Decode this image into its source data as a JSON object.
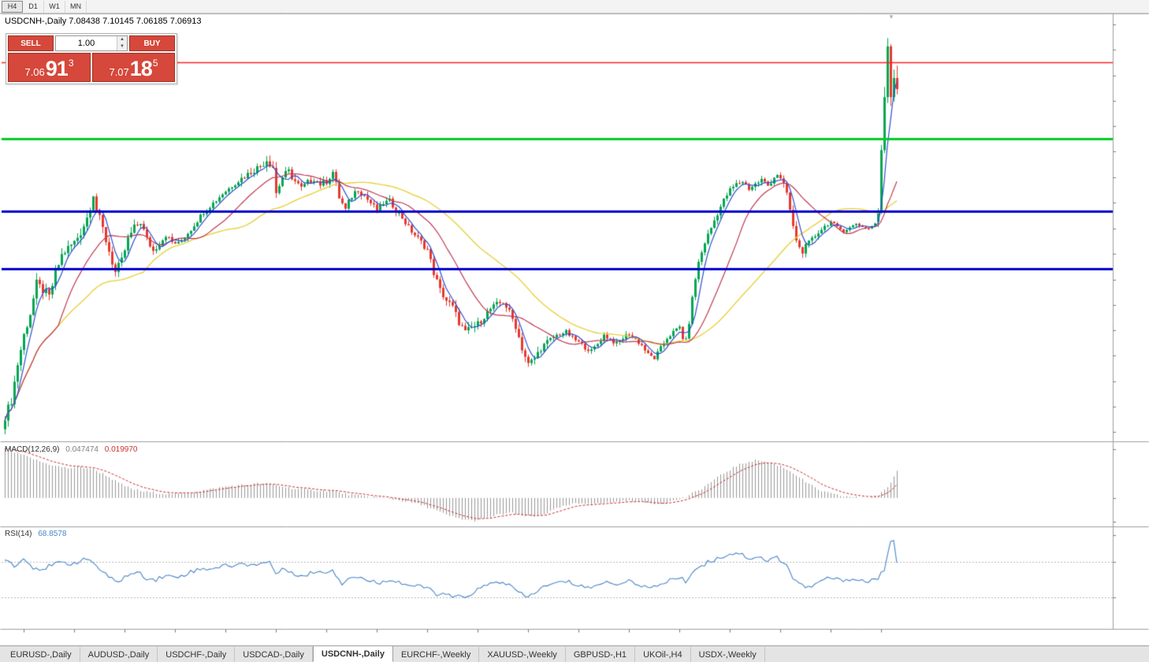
{
  "toolbar": {
    "timeframes": [
      "H4",
      "D1",
      "W1",
      "MN"
    ],
    "active_timeframe": "H4"
  },
  "chart": {
    "title": "USDCNH-,Daily 7.08438 7.10145 7.06185 7.06913"
  },
  "icons": {
    "volume_up": "▲",
    "volume_down": "▼",
    "last_bar_marker": "▼"
  },
  "trade_panel": {
    "sell_label": "SELL",
    "buy_label": "BUY",
    "volume": "1.00",
    "sell_price": {
      "whole": "7.06",
      "pips": "91",
      "point": "3"
    },
    "buy_price": {
      "whole": "7.07",
      "pips": "18",
      "point": "5"
    }
  },
  "price_axis": {
    "labels": [
      "7.15830",
      "7.12365",
      "7.08795",
      "7.05330",
      "7.01760",
      "6.98295",
      "6.94725",
      "6.91260",
      "6.87690",
      "6.84225",
      "6.80655",
      "6.77190",
      "6.73620",
      "6.70155",
      "6.66585",
      "6.63120",
      "6.59655"
    ]
  },
  "levels": [
    {
      "value": "7.10651",
      "price": 7.10651,
      "line_color": "#ff2020",
      "line_width": 1.5,
      "box_bg": "#f42020",
      "box_fg": "#ffffff"
    },
    {
      "value": "7.06913",
      "price": 7.06913,
      "line_color": null,
      "line_width": 0,
      "box_bg": "#1d1d1d",
      "box_fg": "#ffffff"
    },
    {
      "value": "7.00068",
      "price": 7.00068,
      "line_color": "#00cc22",
      "line_width": 3,
      "box_bg": "#00cc22",
      "box_fg": "#002200"
    },
    {
      "value": "6.90100",
      "price": 6.901,
      "line_color": "#0000cc",
      "line_width": 3,
      "box_bg": "#0000cc",
      "box_fg": "#ffffff"
    },
    {
      "value": "6.82103",
      "price": 6.82103,
      "line_color": "#0000cc",
      "line_width": 3,
      "box_bg": "#0000cc",
      "box_fg": "#ffffff"
    }
  ],
  "macd": {
    "label": "MACD(12,26,9)",
    "main_value": "0.047474",
    "signal_value": "0.019970",
    "axis_labels": [
      "0.08516",
      "0.00",
      "-0.04159"
    ]
  },
  "rsi": {
    "label": "RSI(14)",
    "value": "68.8578",
    "axis_labels": [
      "100",
      "70",
      "30"
    ],
    "levels": [
      70,
      30
    ]
  },
  "time_axis": {
    "labels": [
      "4 Jul 2018",
      "27 Jul 2018",
      "20 Aug 2018",
      "11 Sep 2018",
      "3 Oct 2018",
      "25 Oct 2018",
      "16 Nov 2018",
      "10 Dec 2018",
      "1 Jan 2019",
      "23 Jan 2019",
      "14 Feb 2019",
      "8 Mar 2019",
      "1 Apr 2019",
      "24 Apr 2019",
      "16 May 2019",
      "7 Jun 2019",
      "1 Jul 2019",
      "23 Jul 2019"
    ]
  },
  "tabs": {
    "active": "USDCNH-,Daily",
    "items": [
      "EURUSD-,Daily",
      "AUDUSD-,Daily",
      "USDCHF-,Daily",
      "USDCAD-,Daily",
      "USDCNH-,Daily",
      "EURCHF-,Weekly",
      "XAUUSD-,Weekly",
      "GBPUSD-,H1",
      "UKOil-,H4",
      "USDX-,Weekly"
    ]
  },
  "colors": {
    "candle_up": "#00a651",
    "candle_down": "#e8392e",
    "ma_fast": "#2e4fd0",
    "ma_mid": "#c03a52",
    "ma_slow": "#e8d23f",
    "macd_hist": "#999999",
    "macd_signal": "#cc3333",
    "rsi_line": "#4a86c8"
  },
  "chart_data": {
    "type": "candlestick",
    "symbol": "USDCNH",
    "timeframe": "Daily",
    "ohlc_current": {
      "open": 7.08438,
      "high": 7.10145,
      "low": 7.06185,
      "close": 7.06913
    },
    "ylim": [
      6.59655,
      7.1583
    ],
    "macd_range": [
      -0.04159,
      0.08516
    ],
    "rsi_range": [
      0,
      100
    ],
    "candle_count": 284,
    "price_waypoints": [
      [
        0,
        6.618
      ],
      [
        2,
        6.64
      ],
      [
        4,
        6.69
      ],
      [
        6,
        6.73
      ],
      [
        8,
        6.76
      ],
      [
        10,
        6.8
      ],
      [
        12,
        6.792
      ],
      [
        14,
        6.782
      ],
      [
        16,
        6.815
      ],
      [
        18,
        6.84
      ],
      [
        20,
        6.85
      ],
      [
        22,
        6.858
      ],
      [
        24,
        6.872
      ],
      [
        26,
        6.892
      ],
      [
        28,
        6.926
      ],
      [
        29,
        6.902
      ],
      [
        31,
        6.876
      ],
      [
        33,
        6.846
      ],
      [
        35,
        6.816
      ],
      [
        37,
        6.832
      ],
      [
        39,
        6.862
      ],
      [
        41,
        6.878
      ],
      [
        43,
        6.886
      ],
      [
        45,
        6.862
      ],
      [
        47,
        6.846
      ],
      [
        49,
        6.856
      ],
      [
        51,
        6.868
      ],
      [
        53,
        6.858
      ],
      [
        55,
        6.856
      ],
      [
        57,
        6.866
      ],
      [
        59,
        6.876
      ],
      [
        61,
        6.888
      ],
      [
        63,
        6.9
      ],
      [
        65,
        6.908
      ],
      [
        67,
        6.916
      ],
      [
        69,
        6.925
      ],
      [
        71,
        6.932
      ],
      [
        73,
        6.94
      ],
      [
        75,
        6.946
      ],
      [
        77,
        6.952
      ],
      [
        79,
        6.958
      ],
      [
        81,
        6.963
      ],
      [
        83,
        6.972
      ],
      [
        85,
        6.962
      ],
      [
        86,
        6.926
      ],
      [
        88,
        6.948
      ],
      [
        90,
        6.955
      ],
      [
        92,
        6.942
      ],
      [
        94,
        6.932
      ],
      [
        96,
        6.94
      ],
      [
        98,
        6.946
      ],
      [
        100,
        6.938
      ],
      [
        102,
        6.942
      ],
      [
        104,
        6.955
      ],
      [
        106,
        6.92
      ],
      [
        108,
        6.902
      ],
      [
        110,
        6.922
      ],
      [
        112,
        6.932
      ],
      [
        114,
        6.922
      ],
      [
        116,
        6.912
      ],
      [
        118,
        6.902
      ],
      [
        120,
        6.912
      ],
      [
        122,
        6.915
      ],
      [
        124,
        6.902
      ],
      [
        126,
        6.892
      ],
      [
        128,
        6.878
      ],
      [
        130,
        6.868
      ],
      [
        132,
        6.858
      ],
      [
        134,
        6.848
      ],
      [
        136,
        6.816
      ],
      [
        138,
        6.792
      ],
      [
        140,
        6.778
      ],
      [
        142,
        6.768
      ],
      [
        144,
        6.748
      ],
      [
        146,
        6.733
      ],
      [
        148,
        6.74
      ],
      [
        150,
        6.745
      ],
      [
        152,
        6.756
      ],
      [
        154,
        6.766
      ],
      [
        156,
        6.772
      ],
      [
        158,
        6.776
      ],
      [
        160,
        6.762
      ],
      [
        162,
        6.742
      ],
      [
        164,
        6.712
      ],
      [
        166,
        6.689
      ],
      [
        168,
        6.698
      ],
      [
        170,
        6.712
      ],
      [
        172,
        6.72
      ],
      [
        174,
        6.727
      ],
      [
        176,
        6.732
      ],
      [
        178,
        6.734
      ],
      [
        180,
        6.726
      ],
      [
        182,
        6.72
      ],
      [
        184,
        6.713
      ],
      [
        186,
        6.708
      ],
      [
        188,
        6.718
      ],
      [
        190,
        6.73
      ],
      [
        192,
        6.724
      ],
      [
        194,
        6.718
      ],
      [
        196,
        6.726
      ],
      [
        198,
        6.732
      ],
      [
        200,
        6.724
      ],
      [
        202,
        6.716
      ],
      [
        204,
        6.703
      ],
      [
        206,
        6.698
      ],
      [
        208,
        6.712
      ],
      [
        210,
        6.726
      ],
      [
        212,
        6.734
      ],
      [
        214,
        6.741
      ],
      [
        215,
        6.726
      ],
      [
        216,
        6.722
      ],
      [
        217,
        6.748
      ],
      [
        218,
        6.78
      ],
      [
        219,
        6.808
      ],
      [
        220,
        6.83
      ],
      [
        222,
        6.858
      ],
      [
        224,
        6.878
      ],
      [
        226,
        6.898
      ],
      [
        228,
        6.916
      ],
      [
        230,
        6.93
      ],
      [
        232,
        6.938
      ],
      [
        234,
        6.942
      ],
      [
        236,
        6.932
      ],
      [
        238,
        6.938
      ],
      [
        240,
        6.944
      ],
      [
        242,
        6.936
      ],
      [
        244,
        6.948
      ],
      [
        245,
        6.952
      ],
      [
        246,
        6.944
      ],
      [
        247,
        6.936
      ],
      [
        248,
        6.926
      ],
      [
        249,
        6.902
      ],
      [
        250,
        6.878
      ],
      [
        251,
        6.862
      ],
      [
        252,
        6.85
      ],
      [
        253,
        6.846
      ],
      [
        254,
        6.852
      ],
      [
        256,
        6.862
      ],
      [
        258,
        6.872
      ],
      [
        260,
        6.88
      ],
      [
        262,
        6.886
      ],
      [
        264,
        6.878
      ],
      [
        266,
        6.874
      ],
      [
        268,
        6.878
      ],
      [
        270,
        6.884
      ],
      [
        272,
        6.879
      ],
      [
        274,
        6.877
      ],
      [
        276,
        6.884
      ]
    ],
    "volatility_waypoints": [
      [
        0,
        0.013
      ],
      [
        10,
        0.015
      ],
      [
        20,
        0.012
      ],
      [
        28,
        0.016
      ],
      [
        36,
        0.013
      ],
      [
        50,
        0.008
      ],
      [
        70,
        0.007
      ],
      [
        85,
        0.013
      ],
      [
        100,
        0.009
      ],
      [
        108,
        0.012
      ],
      [
        120,
        0.007
      ],
      [
        136,
        0.01
      ],
      [
        146,
        0.012
      ],
      [
        160,
        0.008
      ],
      [
        166,
        0.012
      ],
      [
        180,
        0.006
      ],
      [
        200,
        0.007
      ],
      [
        214,
        0.006
      ],
      [
        220,
        0.009
      ],
      [
        232,
        0.007
      ],
      [
        250,
        0.01
      ],
      [
        262,
        0.005
      ],
      [
        276,
        0.004
      ]
    ],
    "last_candles_start": 277,
    "last_candles": [
      [
        6.886,
        6.905,
        6.879,
        6.9
      ],
      [
        6.9,
        6.992,
        6.897,
        6.985
      ],
      [
        6.985,
        7.072,
        6.981,
        7.058
      ],
      [
        7.058,
        7.1395,
        7.05,
        7.128
      ],
      [
        7.128,
        7.131,
        7.046,
        7.058
      ],
      [
        7.058,
        7.096,
        7.052,
        7.08438
      ],
      [
        7.08438,
        7.10145,
        7.06185,
        7.06913
      ]
    ],
    "macd_waypoints": [
      [
        0,
        0.085
      ],
      [
        4,
        0.078
      ],
      [
        8,
        0.07
      ],
      [
        12,
        0.062
      ],
      [
        16,
        0.056
      ],
      [
        20,
        0.052
      ],
      [
        24,
        0.054
      ],
      [
        28,
        0.05
      ],
      [
        32,
        0.04
      ],
      [
        36,
        0.026
      ],
      [
        40,
        0.016
      ],
      [
        44,
        0.011
      ],
      [
        48,
        0.009
      ],
      [
        52,
        0.007
      ],
      [
        56,
        0.008
      ],
      [
        60,
        0.011
      ],
      [
        64,
        0.014
      ],
      [
        68,
        0.018
      ],
      [
        72,
        0.021
      ],
      [
        76,
        0.023
      ],
      [
        80,
        0.025
      ],
      [
        84,
        0.024
      ],
      [
        88,
        0.02
      ],
      [
        92,
        0.016
      ],
      [
        96,
        0.014
      ],
      [
        100,
        0.013
      ],
      [
        104,
        0.012
      ],
      [
        108,
        0.007
      ],
      [
        112,
        0.004
      ],
      [
        116,
        0.002
      ],
      [
        120,
        0.0
      ],
      [
        124,
        -0.003
      ],
      [
        128,
        -0.007
      ],
      [
        132,
        -0.012
      ],
      [
        136,
        -0.02
      ],
      [
        140,
        -0.03
      ],
      [
        144,
        -0.036
      ],
      [
        148,
        -0.04
      ],
      [
        152,
        -0.037
      ],
      [
        156,
        -0.03
      ],
      [
        160,
        -0.026
      ],
      [
        164,
        -0.031
      ],
      [
        168,
        -0.033
      ],
      [
        172,
        -0.026
      ],
      [
        176,
        -0.017
      ],
      [
        180,
        -0.011
      ],
      [
        184,
        -0.009
      ],
      [
        188,
        -0.01
      ],
      [
        192,
        -0.008
      ],
      [
        196,
        -0.006
      ],
      [
        200,
        -0.005
      ],
      [
        204,
        -0.009
      ],
      [
        208,
        -0.01
      ],
      [
        212,
        -0.005
      ],
      [
        216,
        0.002
      ],
      [
        220,
        0.013
      ],
      [
        224,
        0.028
      ],
      [
        228,
        0.043
      ],
      [
        232,
        0.056
      ],
      [
        236,
        0.064
      ],
      [
        239,
        0.066
      ],
      [
        242,
        0.062
      ],
      [
        246,
        0.056
      ],
      [
        250,
        0.044
      ],
      [
        254,
        0.028
      ],
      [
        258,
        0.014
      ],
      [
        262,
        0.007
      ],
      [
        266,
        0.003
      ],
      [
        270,
        0.001
      ],
      [
        274,
        0.001
      ],
      [
        277,
        0.004
      ],
      [
        280,
        0.018
      ],
      [
        283,
        0.0475
      ]
    ],
    "rsi_waypoints": [
      [
        0,
        74
      ],
      [
        3,
        66
      ],
      [
        6,
        73
      ],
      [
        9,
        64
      ],
      [
        12,
        62
      ],
      [
        15,
        66
      ],
      [
        18,
        69
      ],
      [
        21,
        68
      ],
      [
        24,
        71
      ],
      [
        27,
        73
      ],
      [
        30,
        62
      ],
      [
        33,
        52
      ],
      [
        36,
        48
      ],
      [
        39,
        55
      ],
      [
        42,
        58
      ],
      [
        45,
        52
      ],
      [
        48,
        50
      ],
      [
        51,
        55
      ],
      [
        54,
        52
      ],
      [
        57,
        56
      ],
      [
        60,
        60
      ],
      [
        63,
        62
      ],
      [
        66,
        63
      ],
      [
        69,
        65
      ],
      [
        72,
        66
      ],
      [
        75,
        67
      ],
      [
        78,
        67
      ],
      [
        81,
        68
      ],
      [
        84,
        70
      ],
      [
        86,
        57
      ],
      [
        89,
        62
      ],
      [
        92,
        57
      ],
      [
        95,
        53
      ],
      [
        98,
        59
      ],
      [
        101,
        58
      ],
      [
        104,
        61
      ],
      [
        107,
        46
      ],
      [
        110,
        54
      ],
      [
        113,
        52
      ],
      [
        116,
        48
      ],
      [
        119,
        46
      ],
      [
        122,
        51
      ],
      [
        125,
        47
      ],
      [
        128,
        44
      ],
      [
        131,
        42
      ],
      [
        134,
        41
      ],
      [
        137,
        34
      ],
      [
        140,
        32
      ],
      [
        143,
        31
      ],
      [
        146,
        29
      ],
      [
        149,
        37
      ],
      [
        152,
        42
      ],
      [
        155,
        46
      ],
      [
        158,
        48
      ],
      [
        161,
        41
      ],
      [
        164,
        33
      ],
      [
        166,
        30
      ],
      [
        169,
        38
      ],
      [
        172,
        43
      ],
      [
        175,
        46
      ],
      [
        178,
        48
      ],
      [
        181,
        45
      ],
      [
        184,
        42
      ],
      [
        187,
        41
      ],
      [
        190,
        48
      ],
      [
        193,
        45
      ],
      [
        196,
        47
      ],
      [
        199,
        48
      ],
      [
        202,
        44
      ],
      [
        205,
        39
      ],
      [
        208,
        45
      ],
      [
        211,
        50
      ],
      [
        214,
        52
      ],
      [
        216,
        48
      ],
      [
        218,
        58
      ],
      [
        221,
        66
      ],
      [
        224,
        71
      ],
      [
        227,
        75
      ],
      [
        230,
        79
      ],
      [
        233,
        80
      ],
      [
        236,
        74
      ],
      [
        239,
        76
      ],
      [
        242,
        71
      ],
      [
        245,
        75
      ],
      [
        248,
        67
      ],
      [
        250,
        52
      ],
      [
        253,
        43
      ],
      [
        256,
        41
      ],
      [
        259,
        49
      ],
      [
        262,
        52
      ],
      [
        265,
        49
      ],
      [
        268,
        51
      ],
      [
        271,
        49
      ],
      [
        274,
        48
      ],
      [
        277,
        52
      ],
      [
        279,
        60
      ],
      [
        280,
        75
      ],
      [
        281,
        91
      ],
      [
        282,
        95
      ],
      [
        283,
        68.86
      ]
    ]
  }
}
